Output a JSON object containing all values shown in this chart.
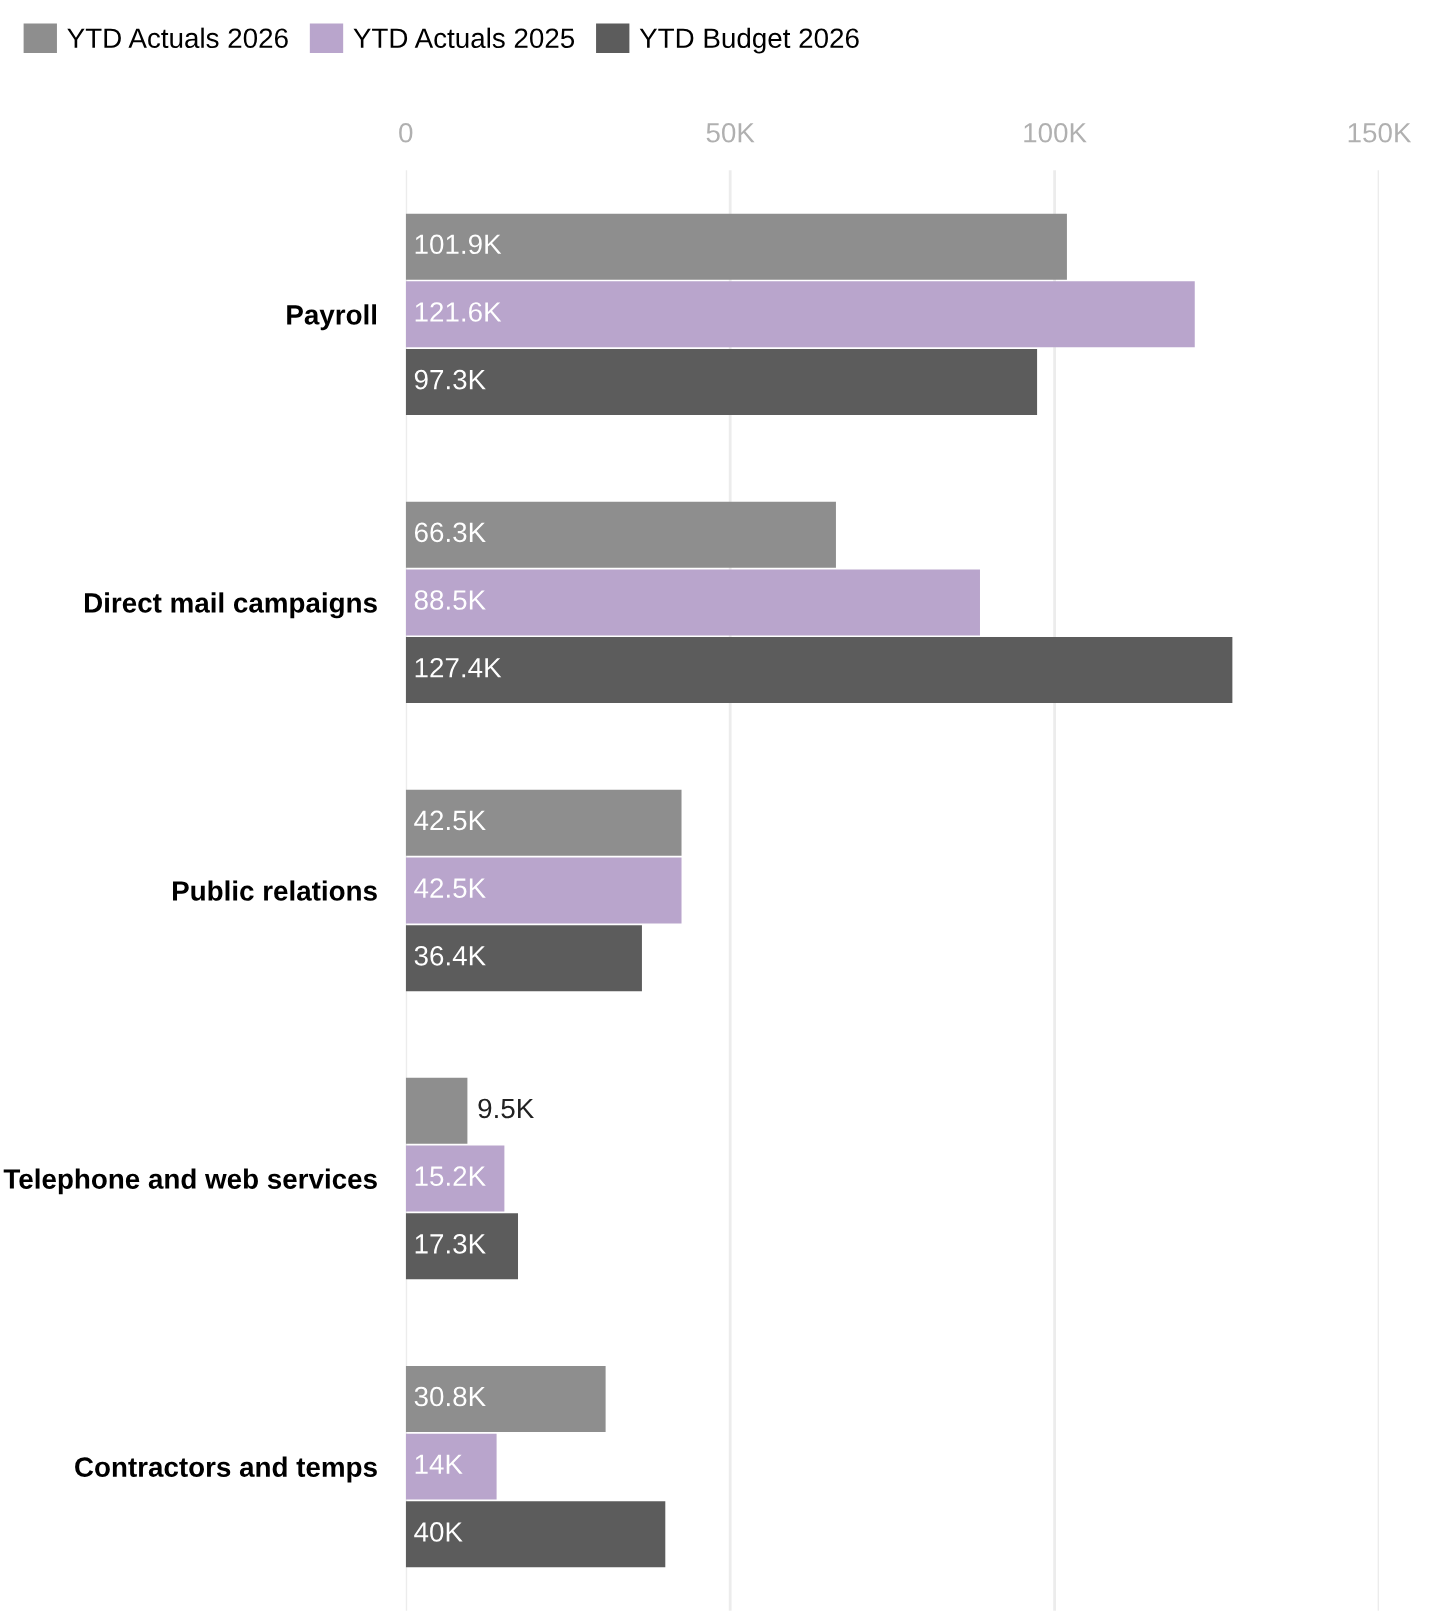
{
  "chart_data": {
    "type": "bar",
    "orientation": "horizontal",
    "categories": [
      "Payroll",
      "Direct mail campaigns",
      "Public relations",
      "Telephone and web services",
      "Contractors and temps"
    ],
    "series": [
      {
        "name": "YTD Actuals 2026",
        "color": "#8e8e8e",
        "values": [
          101900,
          66300,
          42500,
          9500,
          30800
        ],
        "value_labels": [
          "101.9K",
          "66.3K",
          "42.5K",
          "9.5K",
          "30.8K"
        ]
      },
      {
        "name": "YTD Actuals 2025",
        "color": "#b9a5cc",
        "values": [
          121600,
          88500,
          42500,
          15200,
          14000
        ],
        "value_labels": [
          "121.6K",
          "88.5K",
          "42.5K",
          "15.2K",
          "14K"
        ]
      },
      {
        "name": "YTD Budget 2026",
        "color": "#5c5c5c",
        "values": [
          97300,
          127400,
          36400,
          17300,
          40000
        ],
        "value_labels": [
          "97.3K",
          "127.4K",
          "36.4K",
          "17.3K",
          "40K"
        ]
      }
    ],
    "xlim": [
      0,
      150000
    ],
    "xticks": [
      {
        "value": 0,
        "label": "0"
      },
      {
        "value": 50000,
        "label": "50K"
      },
      {
        "value": 100000,
        "label": "100K"
      },
      {
        "value": 150000,
        "label": "150K"
      }
    ],
    "grid": "x",
    "legend": "top left"
  }
}
